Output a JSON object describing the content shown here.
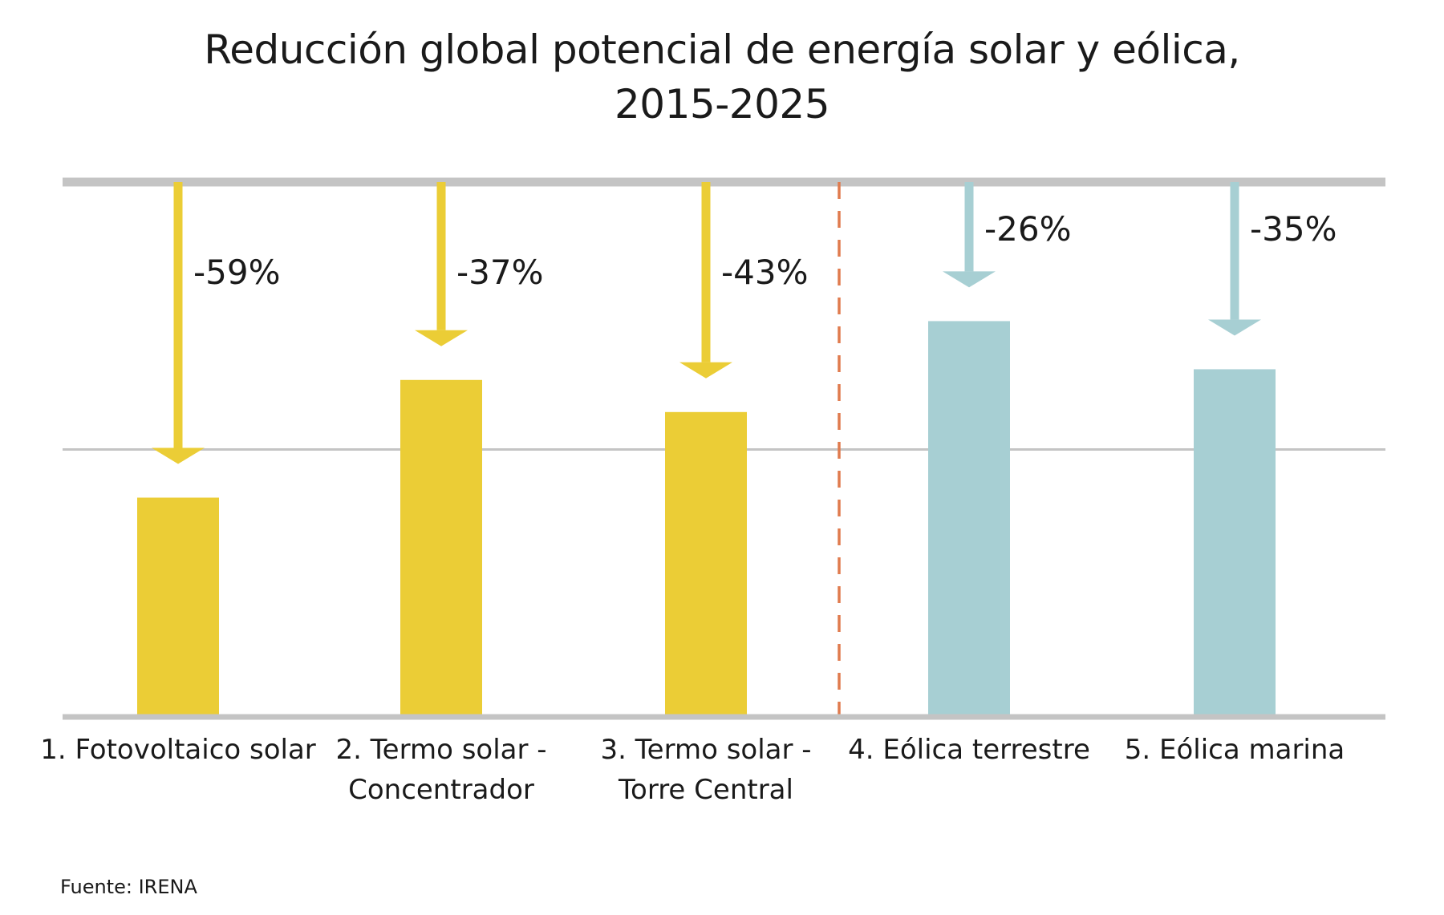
{
  "chart_data": {
    "type": "bar",
    "title_line1": "Reducción global potencial de energía solar y eólica,",
    "title_line2": "2015-2025",
    "categories_line1": [
      "1. Fotovoltaico solar",
      "2. Termo solar -",
      "3. Termo solar -",
      "4. Eólica terrestre",
      "5. Eólica marina"
    ],
    "categories_line2": [
      "",
      "Concentrador",
      "Torre Central",
      "",
      ""
    ],
    "reduction_labels": [
      "-59%",
      "-37%",
      "-43%",
      "-26%",
      "-35%"
    ],
    "reductions": [
      59,
      37,
      43,
      26,
      35
    ],
    "groups": [
      "solar",
      "solar",
      "solar",
      "wind",
      "wind"
    ],
    "colors": {
      "solar": "#ebcd36",
      "wind": "#a7cfd3",
      "divider": "#e07b4e",
      "grid": "#c4c4c4"
    },
    "grid": true,
    "source": "Fuente: IRENA"
  }
}
